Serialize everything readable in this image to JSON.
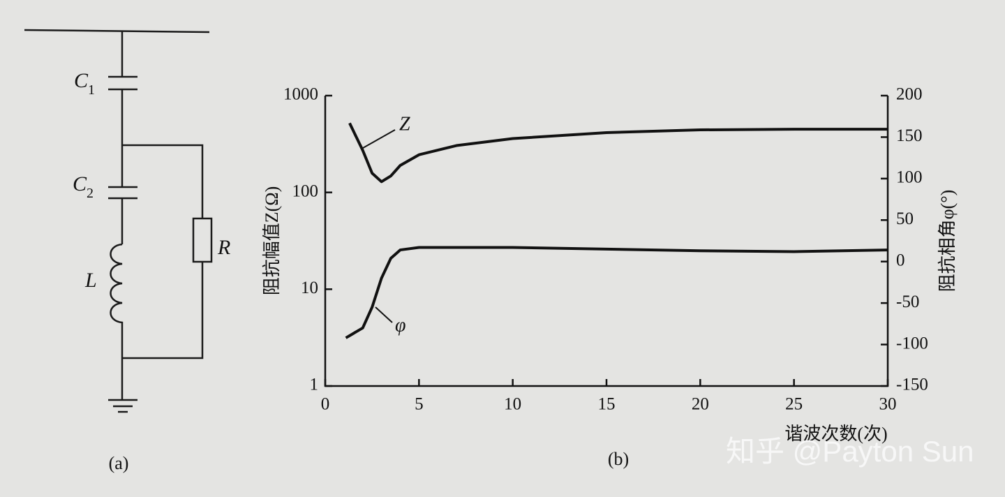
{
  "diagram": {
    "caption": "(a)",
    "components": [
      {
        "symbol": "C",
        "subscript": "1"
      },
      {
        "symbol": "C",
        "subscript": "2"
      },
      {
        "symbol": "L"
      },
      {
        "symbol": "R"
      }
    ]
  },
  "chart_data": {
    "type": "line",
    "caption": "(b)",
    "x_label": "谐波次数(次)",
    "y_label": "阻抗幅值Z(Ω)",
    "y2_label": "阻抗相角φ(°)",
    "xlim": [
      0,
      30
    ],
    "xticks": [
      0,
      5,
      10,
      15,
      20,
      25,
      30
    ],
    "ylim": [
      1,
      1000
    ],
    "yticks": [
      1,
      10,
      100,
      1000
    ],
    "log_y": true,
    "y2lim": [
      -150,
      200
    ],
    "y2ticks": [
      -150,
      -100,
      -50,
      0,
      50,
      100,
      150,
      200
    ],
    "series": [
      {
        "name": "Z",
        "color": "#111111",
        "x": [
          1.3,
          2,
          2.5,
          3,
          3.5,
          4,
          5,
          7,
          10,
          15,
          20,
          25,
          30
        ],
        "values": [
          520,
          272,
          158,
          129,
          148,
          190,
          245,
          305,
          360,
          415,
          443,
          450,
          450
        ]
      },
      {
        "name": "φ",
        "color": "#111111",
        "axis": "y2",
        "x": [
          1.1,
          2,
          2.5,
          3,
          3.5,
          4,
          5,
          6,
          10,
          15,
          20,
          25,
          30
        ],
        "values": [
          -92,
          -80,
          -55,
          -20,
          4,
          14,
          17,
          17,
          17,
          15,
          13,
          12,
          14
        ]
      }
    ]
  },
  "watermark": "知乎 @Payton Sun"
}
